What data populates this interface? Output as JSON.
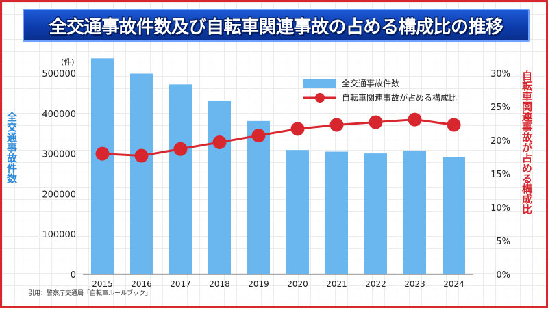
{
  "title": "全交通事故件数及び自転車関連事故の占める構成比の推移",
  "source": "引用：警察庁交通局「自転車ルールブック」",
  "left_axis_label": "全交通事故件数",
  "right_axis_label": "自転車関連事故が占める構成比",
  "left_axis_unit": "(件)",
  "colors": {
    "bar": "#6ab7f0",
    "line": "#d8262e",
    "title_bg": "#0c3aa8",
    "frame": "#d8262e"
  },
  "chart_data": {
    "type": "bar",
    "categories": [
      "2015",
      "2016",
      "2017",
      "2018",
      "2019",
      "2020",
      "2021",
      "2022",
      "2023",
      "2024"
    ],
    "series": [
      {
        "name": "全交通事故件数",
        "type": "bar",
        "axis": "left",
        "values": [
          536899,
          499201,
          472165,
          430601,
          381237,
          309178,
          305196,
          300839,
          307930,
          290895
        ]
      },
      {
        "name": "自転車関連事故が占める構成比",
        "type": "line",
        "axis": "right",
        "values": [
          18.0,
          17.7,
          18.7,
          19.7,
          20.7,
          21.7,
          22.3,
          22.7,
          23.1,
          22.3
        ]
      }
    ],
    "left_axis": {
      "ylim": [
        0,
        500000
      ],
      "ticks": [
        "0",
        "100000",
        "200000",
        "300000",
        "400000",
        "500000"
      ]
    },
    "right_axis": {
      "ylim": [
        0,
        30
      ],
      "ticks": [
        "0%",
        "5%",
        "10%",
        "15%",
        "20%",
        "25%",
        "30%"
      ]
    },
    "legend": {
      "position": "top-right",
      "entries": [
        "全交通事故件数",
        "自転車関連事故が占める構成比"
      ]
    },
    "grid": true
  }
}
